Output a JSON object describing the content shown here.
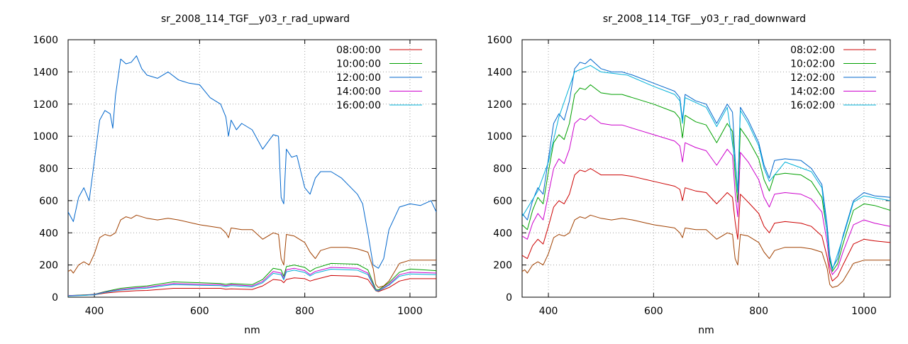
{
  "chart_data": [
    {
      "type": "line",
      "title": "sr_2008_114_TGF__y03_r_rad_upward",
      "xlabel": "nm",
      "ylabel": "",
      "xlim": [
        350,
        1050
      ],
      "ylim": [
        0,
        1600
      ],
      "xticks": [
        400,
        600,
        800,
        1000
      ],
      "yticks": [
        0,
        200,
        400,
        600,
        800,
        1000,
        1200,
        1400,
        1600
      ],
      "grid": true,
      "legend": "top-right",
      "series": [
        {
          "name": "08:00:00",
          "color": "#cc0000",
          "x": [
            350,
            380,
            400,
            420,
            450,
            480,
            500,
            550,
            600,
            640,
            650,
            660,
            700,
            720,
            740,
            755,
            760,
            765,
            780,
            800,
            810,
            820,
            850,
            900,
            920,
            935,
            940,
            960,
            980,
            1000,
            1050
          ],
          "y": [
            10,
            12,
            15,
            25,
            35,
            40,
            42,
            55,
            55,
            55,
            50,
            52,
            48,
            70,
            110,
            105,
            90,
            110,
            120,
            115,
            100,
            110,
            135,
            130,
            110,
            40,
            35,
            60,
            100,
            115,
            115
          ]
        },
        {
          "name": "10:00:00",
          "color": "#00a000",
          "x": [
            350,
            380,
            400,
            420,
            450,
            480,
            500,
            550,
            600,
            640,
            650,
            660,
            700,
            720,
            740,
            755,
            760,
            765,
            780,
            800,
            810,
            820,
            850,
            900,
            920,
            935,
            940,
            960,
            980,
            1000,
            1050
          ],
          "y": [
            10,
            14,
            18,
            35,
            55,
            65,
            70,
            95,
            90,
            85,
            80,
            85,
            78,
            110,
            180,
            170,
            130,
            190,
            200,
            185,
            160,
            180,
            210,
            205,
            170,
            50,
            45,
            90,
            155,
            175,
            165
          ]
        },
        {
          "name": "12:00:00",
          "color": "#0066cc",
          "x": [
            350,
            360,
            370,
            380,
            390,
            400,
            410,
            420,
            430,
            435,
            440,
            450,
            460,
            470,
            480,
            490,
            500,
            520,
            540,
            560,
            580,
            600,
            620,
            640,
            650,
            655,
            660,
            670,
            680,
            700,
            720,
            740,
            750,
            755,
            760,
            765,
            775,
            785,
            800,
            810,
            820,
            830,
            850,
            870,
            900,
            910,
            920,
            930,
            940,
            950,
            960,
            980,
            1000,
            1020,
            1040,
            1050
          ],
          "y": [
            530,
            470,
            620,
            680,
            600,
            850,
            1100,
            1160,
            1140,
            1050,
            1250,
            1480,
            1450,
            1460,
            1500,
            1420,
            1380,
            1360,
            1400,
            1350,
            1330,
            1320,
            1240,
            1200,
            1120,
            1000,
            1100,
            1040,
            1080,
            1040,
            920,
            1010,
            1000,
            620,
            580,
            920,
            870,
            880,
            680,
            640,
            740,
            780,
            780,
            740,
            640,
            580,
            400,
            200,
            180,
            240,
            420,
            560,
            580,
            570,
            600,
            530
          ]
        },
        {
          "name": "14:00:00",
          "color": "#cc00cc",
          "x": [
            350,
            380,
            400,
            420,
            450,
            480,
            500,
            550,
            600,
            640,
            650,
            660,
            700,
            720,
            740,
            755,
            760,
            765,
            780,
            800,
            810,
            820,
            850,
            900,
            920,
            935,
            940,
            960,
            980,
            1000,
            1050
          ],
          "y": [
            10,
            13,
            17,
            32,
            48,
            58,
            62,
            85,
            80,
            78,
            72,
            78,
            70,
            98,
            160,
            150,
            115,
            170,
            180,
            165,
            140,
            160,
            185,
            180,
            150,
            45,
            40,
            80,
            140,
            155,
            150
          ]
        },
        {
          "name": "16:00:00",
          "color": "#00b0d8",
          "x": [
            350,
            380,
            400,
            420,
            450,
            480,
            500,
            550,
            600,
            640,
            650,
            660,
            700,
            720,
            740,
            755,
            760,
            765,
            780,
            800,
            810,
            820,
            850,
            900,
            920,
            935,
            940,
            960,
            980,
            1000,
            1050
          ],
          "y": [
            8,
            11,
            15,
            30,
            44,
            52,
            56,
            78,
            74,
            72,
            66,
            72,
            64,
            90,
            148,
            140,
            108,
            158,
            168,
            154,
            132,
            150,
            174,
            168,
            140,
            42,
            38,
            74,
            130,
            144,
            140
          ]
        },
        {
          "name": "",
          "color": "#a04000",
          "x": [
            350,
            355,
            360,
            370,
            380,
            390,
            400,
            410,
            420,
            430,
            440,
            450,
            460,
            470,
            480,
            500,
            520,
            540,
            560,
            600,
            640,
            650,
            655,
            660,
            680,
            700,
            720,
            740,
            750,
            755,
            760,
            765,
            780,
            800,
            810,
            820,
            830,
            850,
            880,
            900,
            920,
            930,
            935,
            940,
            950,
            960,
            980,
            1000,
            1050
          ],
          "y": [
            160,
            170,
            150,
            200,
            220,
            200,
            270,
            370,
            390,
            380,
            400,
            480,
            500,
            490,
            510,
            490,
            480,
            490,
            480,
            450,
            430,
            400,
            370,
            430,
            420,
            420,
            360,
            400,
            390,
            240,
            200,
            390,
            380,
            340,
            280,
            240,
            290,
            310,
            310,
            300,
            280,
            180,
            80,
            60,
            70,
            100,
            210,
            230,
            230
          ]
        }
      ]
    },
    {
      "type": "line",
      "title": "sr_2008_114_TGF__y03_r_rad_downward",
      "xlabel": "nm",
      "ylabel": "",
      "xlim": [
        350,
        1050
      ],
      "ylim": [
        0,
        1600
      ],
      "xticks": [
        400,
        600,
        800,
        1000
      ],
      "yticks": [
        0,
        200,
        400,
        600,
        800,
        1000,
        1200,
        1400,
        1600
      ],
      "grid": true,
      "legend": "top-right",
      "series": [
        {
          "name": "08:02:00",
          "color": "#cc0000",
          "x": [
            350,
            360,
            370,
            380,
            390,
            400,
            410,
            420,
            430,
            440,
            450,
            460,
            470,
            480,
            500,
            520,
            540,
            560,
            600,
            640,
            650,
            655,
            660,
            680,
            700,
            720,
            740,
            750,
            755,
            760,
            765,
            780,
            800,
            810,
            820,
            830,
            850,
            880,
            900,
            920,
            930,
            935,
            940,
            950,
            960,
            980,
            1000,
            1020,
            1050
          ],
          "y": [
            260,
            240,
            320,
            360,
            330,
            440,
            560,
            600,
            580,
            640,
            760,
            790,
            780,
            800,
            760,
            760,
            760,
            750,
            720,
            690,
            670,
            600,
            680,
            660,
            650,
            580,
            650,
            620,
            470,
            360,
            640,
            590,
            520,
            440,
            400,
            460,
            470,
            460,
            440,
            380,
            250,
            150,
            100,
            130,
            200,
            330,
            360,
            350,
            340
          ]
        },
        {
          "name": "10:02:00",
          "color": "#00a000",
          "x": [
            350,
            360,
            370,
            380,
            390,
            400,
            410,
            420,
            430,
            440,
            450,
            460,
            470,
            480,
            500,
            520,
            540,
            560,
            600,
            640,
            650,
            655,
            660,
            680,
            700,
            720,
            740,
            750,
            755,
            760,
            765,
            780,
            800,
            810,
            820,
            830,
            850,
            880,
            900,
            920,
            930,
            935,
            940,
            950,
            960,
            980,
            1000,
            1020,
            1050
          ],
          "y": [
            450,
            420,
            540,
            620,
            580,
            780,
            960,
            1010,
            980,
            1080,
            1260,
            1300,
            1290,
            1320,
            1270,
            1260,
            1260,
            1240,
            1200,
            1150,
            1110,
            990,
            1130,
            1090,
            1070,
            960,
            1080,
            1030,
            760,
            590,
            1050,
            980,
            860,
            730,
            660,
            760,
            770,
            760,
            720,
            620,
            400,
            230,
            160,
            210,
            330,
            540,
            580,
            570,
            540
          ]
        },
        {
          "name": "12:02:00",
          "color": "#0066cc",
          "x": [
            350,
            360,
            370,
            380,
            390,
            400,
            410,
            420,
            430,
            440,
            450,
            460,
            470,
            480,
            500,
            520,
            540,
            560,
            600,
            640,
            650,
            655,
            660,
            680,
            700,
            720,
            740,
            750,
            755,
            760,
            765,
            780,
            800,
            810,
            820,
            830,
            850,
            880,
            900,
            920,
            930,
            935,
            940,
            950,
            960,
            980,
            1000,
            1020,
            1050
          ],
          "y": [
            520,
            480,
            600,
            680,
            640,
            860,
            1080,
            1140,
            1100,
            1220,
            1420,
            1460,
            1450,
            1480,
            1420,
            1400,
            1400,
            1380,
            1330,
            1280,
            1240,
            1100,
            1260,
            1220,
            1200,
            1080,
            1200,
            1150,
            860,
            660,
            1180,
            1100,
            960,
            820,
            740,
            850,
            860,
            850,
            800,
            700,
            450,
            260,
            180,
            240,
            380,
            600,
            650,
            630,
            620
          ]
        },
        {
          "name": "14:02:00",
          "color": "#cc00cc",
          "x": [
            350,
            360,
            370,
            380,
            390,
            400,
            410,
            420,
            430,
            440,
            450,
            460,
            470,
            480,
            500,
            520,
            540,
            560,
            600,
            640,
            650,
            655,
            660,
            680,
            700,
            720,
            740,
            750,
            755,
            760,
            765,
            780,
            800,
            810,
            820,
            830,
            850,
            880,
            900,
            920,
            930,
            935,
            940,
            950,
            960,
            980,
            1000,
            1020,
            1050
          ],
          "y": [
            380,
            360,
            460,
            520,
            480,
            640,
            800,
            860,
            830,
            920,
            1080,
            1110,
            1100,
            1130,
            1080,
            1070,
            1070,
            1050,
            1010,
            970,
            940,
            840,
            960,
            930,
            910,
            820,
            920,
            880,
            650,
            500,
            900,
            840,
            730,
            620,
            560,
            640,
            650,
            640,
            610,
            530,
            340,
            190,
            140,
            180,
            280,
            450,
            480,
            460,
            440
          ]
        },
        {
          "name": "16:02:00",
          "color": "#00b0d8",
          "x": [
            350,
            380,
            400,
            420,
            450,
            480,
            500,
            550,
            600,
            640,
            650,
            655,
            660,
            700,
            720,
            740,
            755,
            760,
            765,
            780,
            800,
            810,
            820,
            850,
            900,
            920,
            935,
            940,
            960,
            980,
            1000,
            1050
          ],
          "y": [
            500,
            660,
            840,
            1120,
            1400,
            1440,
            1400,
            1380,
            1310,
            1260,
            1220,
            1080,
            1240,
            1180,
            1060,
            1180,
            840,
            650,
            1160,
            1080,
            940,
            800,
            720,
            840,
            780,
            680,
            250,
            170,
            370,
            590,
            630,
            600
          ]
        },
        {
          "name": "",
          "color": "#a04000",
          "x": [
            350,
            355,
            360,
            370,
            380,
            390,
            400,
            410,
            420,
            430,
            440,
            450,
            460,
            470,
            480,
            500,
            520,
            540,
            560,
            600,
            640,
            650,
            655,
            660,
            680,
            700,
            720,
            740,
            750,
            755,
            760,
            765,
            780,
            800,
            810,
            820,
            830,
            850,
            880,
            900,
            920,
            930,
            935,
            940,
            950,
            960,
            980,
            1000,
            1050
          ],
          "y": [
            160,
            170,
            150,
            200,
            220,
            200,
            270,
            370,
            390,
            380,
            400,
            480,
            500,
            490,
            510,
            490,
            480,
            490,
            480,
            450,
            430,
            400,
            370,
            430,
            420,
            420,
            360,
            400,
            390,
            240,
            200,
            390,
            380,
            340,
            280,
            240,
            290,
            310,
            310,
            300,
            280,
            180,
            80,
            60,
            70,
            100,
            210,
            230,
            230
          ]
        }
      ]
    }
  ]
}
